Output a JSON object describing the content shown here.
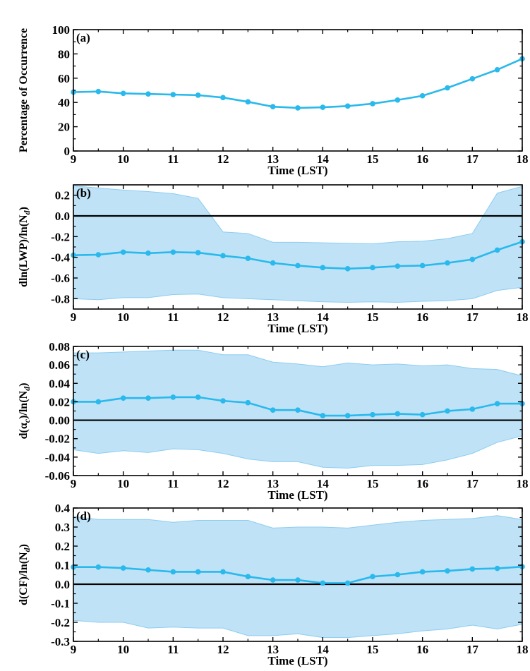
{
  "colors": {
    "line": "#29b9ec",
    "band": "#bfe2f7",
    "band_edge": "#8ccdf0",
    "zero_line": "#000000"
  },
  "chart_data": [
    {
      "type": "line",
      "panel_label": "(a)",
      "xlabel": "Time (LST)",
      "ylabel": "Percentage of Occurrence",
      "xlim": [
        9,
        18
      ],
      "ylim": [
        0,
        100
      ],
      "xticks": [
        9,
        10,
        11,
        12,
        13,
        14,
        15,
        16,
        17,
        18
      ],
      "xtick_labels": [
        "9",
        "10",
        "11",
        "12",
        "13",
        "14",
        "15",
        "16",
        "17",
        "18"
      ],
      "yticks": [
        0,
        20,
        40,
        60,
        80,
        100
      ],
      "ytick_labels": [
        "0",
        "20",
        "40",
        "60",
        "80",
        "100"
      ],
      "zero_line": false,
      "x": [
        9,
        9.5,
        10,
        10.5,
        11,
        11.5,
        12,
        12.5,
        13,
        13.5,
        14,
        14.5,
        15,
        15.5,
        16,
        16.5,
        17,
        17.5,
        18
      ],
      "values": [
        48.5,
        49,
        47.5,
        47,
        46.5,
        46,
        44,
        40.5,
        36.5,
        35.5,
        36,
        37,
        39,
        42,
        45.5,
        52,
        59.5,
        67,
        76
      ],
      "band_upper": [],
      "band_lower": []
    },
    {
      "type": "line",
      "panel_label": "(b)",
      "xlabel": "Time (LST)",
      "ylabel": "dln(LWP)/ln(N",
      "ylabel_sub": "d",
      "ylabel_end": ")",
      "xlim": [
        9,
        18
      ],
      "ylim": [
        -0.9,
        0.3
      ],
      "xticks": [
        9,
        10,
        11,
        12,
        13,
        14,
        15,
        16,
        17,
        18
      ],
      "xtick_labels": [
        "9",
        "10",
        "11",
        "12",
        "13",
        "14",
        "15",
        "16",
        "17",
        "18"
      ],
      "yticks": [
        -0.8,
        -0.6,
        -0.4,
        -0.2,
        0.0,
        0.2
      ],
      "ytick_labels": [
        "-0.8",
        "-0.6",
        "-0.4",
        "-0.2",
        "0.0",
        "0.2"
      ],
      "zero_line": true,
      "x": [
        9,
        9.5,
        10,
        10.5,
        11,
        11.5,
        12,
        12.5,
        13,
        13.5,
        14,
        14.5,
        15,
        15.5,
        16,
        16.5,
        17,
        17.5,
        18
      ],
      "values": [
        -0.38,
        -0.375,
        -0.35,
        -0.36,
        -0.35,
        -0.355,
        -0.385,
        -0.41,
        -0.455,
        -0.48,
        -0.5,
        -0.51,
        -0.5,
        -0.485,
        -0.48,
        -0.455,
        -0.42,
        -0.33,
        -0.25
      ],
      "band_upper": [
        0.29,
        0.27,
        0.25,
        0.235,
        0.215,
        0.17,
        -0.155,
        -0.17,
        -0.255,
        -0.255,
        -0.26,
        -0.265,
        -0.27,
        -0.25,
        -0.245,
        -0.22,
        -0.17,
        0.22,
        0.285
      ],
      "band_lower": [
        -0.8,
        -0.81,
        -0.79,
        -0.79,
        -0.76,
        -0.755,
        -0.79,
        -0.8,
        -0.81,
        -0.82,
        -0.83,
        -0.835,
        -0.83,
        -0.835,
        -0.825,
        -0.82,
        -0.8,
        -0.72,
        -0.69
      ]
    },
    {
      "type": "line",
      "panel_label": "(c)",
      "xlabel": "Time (LST)",
      "ylabel": "d(α",
      "ylabel_sub": "c",
      "ylabel_end": ")/ln(N",
      "ylabel_sub2": "d",
      "ylabel_end2": ")",
      "xlim": [
        9,
        18
      ],
      "ylim": [
        -0.06,
        0.08
      ],
      "xticks": [
        9,
        10,
        11,
        12,
        13,
        14,
        15,
        16,
        17,
        18
      ],
      "xtick_labels": [
        "9",
        "10",
        "11",
        "12",
        "13",
        "14",
        "15",
        "16",
        "17",
        "18"
      ],
      "yticks": [
        -0.06,
        -0.04,
        -0.02,
        0.0,
        0.02,
        0.04,
        0.06,
        0.08
      ],
      "ytick_labels": [
        "-0.06",
        "-0.04",
        "-0.02",
        "0.00",
        "0.02",
        "0.04",
        "0.06",
        "0.08"
      ],
      "zero_line": true,
      "x": [
        9,
        9.5,
        10,
        10.5,
        11,
        11.5,
        12,
        12.5,
        13,
        13.5,
        14,
        14.5,
        15,
        15.5,
        16,
        16.5,
        17,
        17.5,
        18
      ],
      "values": [
        0.02,
        0.02,
        0.024,
        0.024,
        0.025,
        0.025,
        0.021,
        0.019,
        0.011,
        0.011,
        0.005,
        0.005,
        0.006,
        0.007,
        0.006,
        0.01,
        0.012,
        0.018,
        0.018
      ],
      "band_upper": [
        0.073,
        0.073,
        0.074,
        0.075,
        0.076,
        0.076,
        0.071,
        0.071,
        0.063,
        0.061,
        0.058,
        0.062,
        0.06,
        0.061,
        0.059,
        0.06,
        0.056,
        0.055,
        0.048
      ],
      "band_lower": [
        -0.032,
        -0.036,
        -0.033,
        -0.035,
        -0.031,
        -0.032,
        -0.036,
        -0.042,
        -0.045,
        -0.045,
        -0.051,
        -0.052,
        -0.049,
        -0.049,
        -0.048,
        -0.043,
        -0.036,
        -0.024,
        -0.017
      ]
    },
    {
      "type": "line",
      "panel_label": "(d)",
      "xlabel": "Time (LST)",
      "ylabel": "d(CF)/ln(N",
      "ylabel_sub": "d",
      "ylabel_end": ")",
      "xlim": [
        9,
        18
      ],
      "ylim": [
        -0.3,
        0.4
      ],
      "xticks": [
        9,
        10,
        11,
        12,
        13,
        14,
        15,
        16,
        17,
        18
      ],
      "xtick_labels": [
        "9",
        "10",
        "11",
        "12",
        "13",
        "14",
        "15",
        "16",
        "17",
        "18"
      ],
      "yticks": [
        -0.3,
        -0.2,
        -0.1,
        0.0,
        0.1,
        0.2,
        0.3,
        0.4
      ],
      "ytick_labels": [
        "-0.3",
        "-0.2",
        "-0.1",
        "0.0",
        "0.1",
        "0.2",
        "0.3",
        "0.4"
      ],
      "zero_line": true,
      "x": [
        9,
        9.5,
        10,
        10.5,
        11,
        11.5,
        12,
        12.5,
        13,
        13.5,
        14,
        14.5,
        15,
        15.5,
        16,
        16.5,
        17,
        17.5,
        18
      ],
      "values": [
        0.09,
        0.09,
        0.085,
        0.075,
        0.065,
        0.065,
        0.065,
        0.04,
        0.022,
        0.022,
        0.006,
        0.006,
        0.04,
        0.05,
        0.065,
        0.07,
        0.08,
        0.083,
        0.092
      ],
      "band_upper": [
        0.355,
        0.34,
        0.34,
        0.34,
        0.325,
        0.335,
        0.335,
        0.335,
        0.295,
        0.3,
        0.3,
        0.295,
        0.31,
        0.325,
        0.335,
        0.34,
        0.345,
        0.36,
        0.34
      ],
      "band_lower": [
        -0.19,
        -0.2,
        -0.2,
        -0.23,
        -0.225,
        -0.23,
        -0.23,
        -0.27,
        -0.27,
        -0.26,
        -0.28,
        -0.28,
        -0.27,
        -0.26,
        -0.245,
        -0.235,
        -0.215,
        -0.235,
        -0.21
      ]
    }
  ]
}
